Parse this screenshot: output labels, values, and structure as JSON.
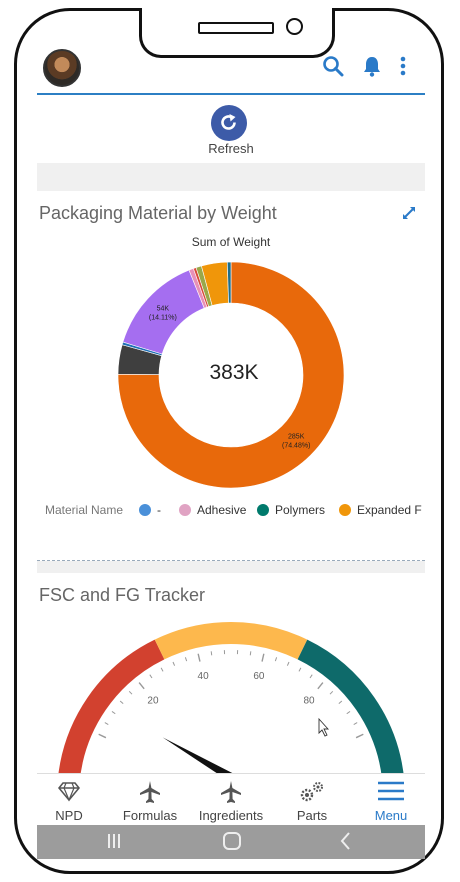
{
  "header": {
    "avatar_icon": "user-avatar",
    "search_icon": "search-icon",
    "notifications_icon": "bell-icon",
    "more_icon": "more-vertical-icon",
    "accent_color": "#2c7fc4"
  },
  "refresh": {
    "label": "Refresh",
    "icon": "refresh-icon",
    "color": "#3d5ba8"
  },
  "packaging_card": {
    "title": "Packaging Material by Weight",
    "expand_icon": "expand-icon",
    "total_label": "383K",
    "chart_data": {
      "type": "pie",
      "title": "Sum of Weight",
      "total": "383K",
      "legend_title": "Material Name",
      "legend_placement": "bottom",
      "legend": [
        {
          "name": "-",
          "color": "#4a90d9"
        },
        {
          "name": "Adhesive",
          "color": "#e0a3c3"
        },
        {
          "name": "Polymers",
          "color": "#007a6c"
        },
        {
          "name": "Expanded F",
          "color": "#f0960a"
        }
      ],
      "slices": [
        {
          "name": "Expanded Polystyrene",
          "value": 285,
          "label": "285K",
          "percent_label": "(74.48%)",
          "color": "#e8690b"
        },
        {
          "name": "Grey",
          "value": 16,
          "color": "#3f3f3f"
        },
        {
          "name": "Blue",
          "value": 1.5,
          "color": "#1f6fb5"
        },
        {
          "name": "Purple",
          "value": 54,
          "label": "54K",
          "percent_label": "(14.11%)",
          "color": "#a56ef0"
        },
        {
          "name": "Pink",
          "value": 2.5,
          "color": "#e890b8"
        },
        {
          "name": "Red",
          "value": 1.5,
          "color": "#d94a3a"
        },
        {
          "name": "Olive",
          "value": 3,
          "color": "#9aa84a"
        },
        {
          "name": "Orange",
          "value": 14,
          "color": "#f0960a"
        },
        {
          "name": "Teal",
          "value": 2,
          "color": "#1f6f8a"
        }
      ]
    }
  },
  "gauge_card": {
    "title": "FSC and FG Tracker",
    "chart_data": {
      "type": "gauge",
      "range": [
        0,
        100
      ],
      "ticks": [
        "20",
        "40",
        "60",
        "80"
      ],
      "tick_values": [
        20,
        40,
        60,
        80
      ],
      "bands": [
        {
          "from": 0,
          "to": 30,
          "color": "#d2412f"
        },
        {
          "from": 30,
          "to": 70,
          "color": "#fdb84d"
        },
        {
          "from": 70,
          "to": 100,
          "color": "#0e6a6a"
        }
      ],
      "needle_value": 12
    }
  },
  "nav": {
    "items": [
      {
        "label": "NPD",
        "icon": "diamond-icon"
      },
      {
        "label": "Formulas",
        "icon": "plane-icon"
      },
      {
        "label": "Ingredients",
        "icon": "plane-icon"
      },
      {
        "label": "Parts",
        "icon": "gears-icon"
      },
      {
        "label": "Menu",
        "icon": "hamburger-icon",
        "active": true
      }
    ],
    "active_color": "#2a7ac8"
  },
  "system_bar": {
    "recents_icon": "recents-icon",
    "home_icon": "home-icon",
    "back_icon": "back-icon"
  }
}
